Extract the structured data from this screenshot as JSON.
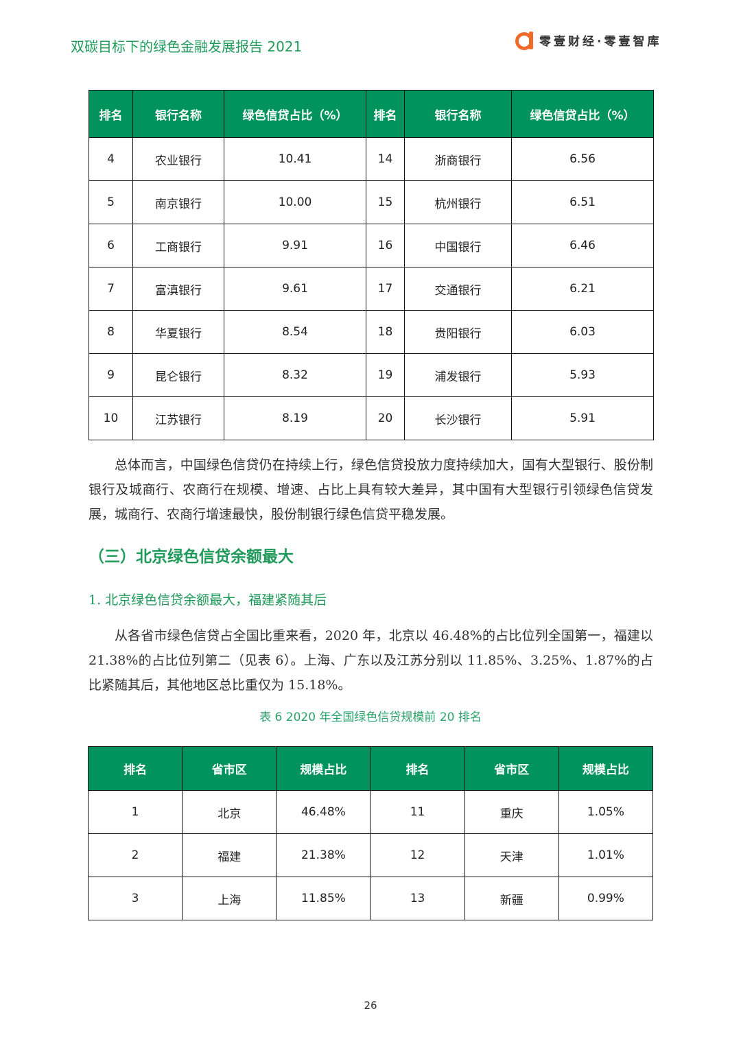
{
  "header": {
    "title": "双碳目标下的绿色金融发展报告 2021",
    "brand": "零壹财经·零壹智库",
    "brand_color": "#f06a2a"
  },
  "table1": {
    "headers": [
      "排名",
      "银行名称",
      "绿色信贷占比（%）",
      "排名",
      "银行名称",
      "绿色信贷占比（%）"
    ],
    "rows": [
      [
        "4",
        "农业银行",
        "10.41",
        "14",
        "浙商银行",
        "6.56"
      ],
      [
        "5",
        "南京银行",
        "10.00",
        "15",
        "杭州银行",
        "6.51"
      ],
      [
        "6",
        "工商银行",
        "9.91",
        "16",
        "中国银行",
        "6.46"
      ],
      [
        "7",
        "富滇银行",
        "9.61",
        "17",
        "交通银行",
        "6.21"
      ],
      [
        "8",
        "华夏银行",
        "8.54",
        "18",
        "贵阳银行",
        "6.03"
      ],
      [
        "9",
        "昆仑银行",
        "8.32",
        "19",
        "浦发银行",
        "5.93"
      ],
      [
        "10",
        "江苏银行",
        "8.19",
        "20",
        "长沙银行",
        "5.91"
      ]
    ]
  },
  "paragraph1": "总体而言，中国绿色信贷仍在持续上行，绿色信贷投放力度持续加大，国有大型银行、股份制银行及城商行、农商行在规模、增速、占比上具有较大差异，其中国有大型银行引领绿色信贷发展，城商行、农商行增速最快，股份制银行绿色信贷平稳发展。",
  "section_heading": "（三）北京绿色信贷余额最大",
  "subsection_heading": "1. 北京绿色信贷余额最大，福建紧随其后",
  "paragraph2": "从各省市绿色信贷占全国比重来看，2020 年，北京以 46.48%的占比位列全国第一，福建以 21.38%的占比位列第二（见表 6）。上海、广东以及江苏分别以 11.85%、3.25%、1.87%的占比紧随其后，其他地区总比重仅为 15.18%。",
  "table2": {
    "caption": "表 6 2020 年全国绿色信贷规模前 20 排名",
    "headers": [
      "排名",
      "省市区",
      "规模占比",
      "排名",
      "省市区",
      "规模占比"
    ],
    "rows": [
      [
        "1",
        "北京",
        "46.48%",
        "11",
        "重庆",
        "1.05%"
      ],
      [
        "2",
        "福建",
        "21.38%",
        "12",
        "天津",
        "1.01%"
      ],
      [
        "3",
        "上海",
        "11.85%",
        "13",
        "新疆",
        "0.99%"
      ]
    ]
  },
  "page_number": "26",
  "colors": {
    "header_green": "#00935e",
    "text_green": "#1f9a5a"
  }
}
